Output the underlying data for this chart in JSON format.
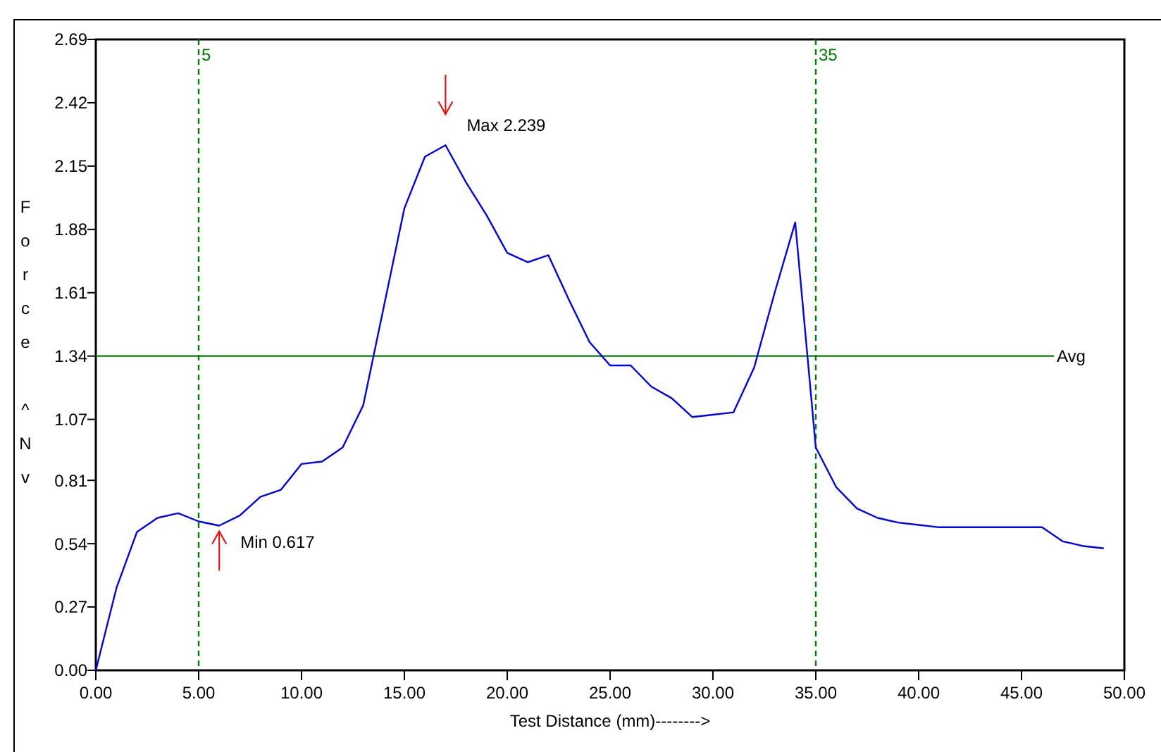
{
  "chart_data": {
    "type": "line",
    "xlabel": "Test Distance  (mm)-------->",
    "ylabel": "Force ^Nv",
    "x": [
      0,
      1,
      2,
      3,
      4,
      5,
      6,
      7,
      8,
      9,
      10,
      11,
      12,
      13,
      14,
      15,
      16,
      17,
      18,
      19,
      20,
      21,
      22,
      23,
      24,
      25,
      26,
      27,
      28,
      29,
      30,
      31,
      32,
      33,
      34,
      35,
      36,
      37,
      38,
      39,
      40,
      41,
      42,
      43,
      44,
      45,
      46,
      47,
      48,
      49
    ],
    "series": [
      {
        "color": "#0000ff",
        "values": [
          0,
          0.35,
          0.59,
          0.65,
          0.67,
          0.635,
          0.617,
          0.66,
          0.74,
          0.77,
          0.88,
          0.89,
          0.95,
          1.13,
          1.55,
          1.97,
          2.19,
          2.239,
          2.08,
          1.94,
          1.78,
          1.74,
          1.77,
          1.58,
          1.4,
          1.3,
          1.3,
          1.21,
          1.16,
          1.08,
          1.09,
          1.1,
          1.29,
          1.61,
          1.91,
          0.95,
          0.78,
          0.69,
          0.65,
          0.63,
          0.62,
          0.61,
          0.61,
          0.61,
          0.61,
          0.61,
          0.61,
          0.55,
          0.53,
          0.52
        ]
      }
    ],
    "xlim": [
      0,
      50
    ],
    "ylim": [
      0,
      2.69
    ],
    "xticks": [
      {
        "value": 0,
        "label": "0.00"
      },
      {
        "value": 5,
        "label": "5.00"
      },
      {
        "value": 10,
        "label": "10.00"
      },
      {
        "value": 15,
        "label": "15.00"
      },
      {
        "value": 20,
        "label": "20.00"
      },
      {
        "value": 25,
        "label": "25.00"
      },
      {
        "value": 30,
        "label": "30.00"
      },
      {
        "value": 35,
        "label": "35.00"
      },
      {
        "value": 40,
        "label": "40.00"
      },
      {
        "value": 45,
        "label": "45.00"
      },
      {
        "value": 50,
        "label": "50.00"
      }
    ],
    "yticks": [
      {
        "value": 0,
        "label": "0.00"
      },
      0.27,
      0.54,
      0.81,
      1.07,
      1.34,
      1.61,
      1.88,
      2.15,
      2.42,
      2.69
    ],
    "ref_lines": [
      {
        "axis": "x",
        "value": 5,
        "label": "5",
        "color": "#008000",
        "line_style": "dashed"
      },
      {
        "axis": "x",
        "value": 35,
        "label": "35",
        "color": "#008000",
        "line_style": "dashed"
      },
      {
        "axis": "y",
        "value": 1.34,
        "label": "Avg",
        "color": "#008000",
        "line_style": "solid"
      }
    ],
    "annotations": [
      {
        "text": "Max 2.239",
        "x": 17,
        "y": 2.239
      },
      {
        "text": "Min 0.617",
        "x": 6,
        "y": 0.617
      }
    ],
    "grid": false,
    "marker": "none",
    "line_style": "solid"
  }
}
